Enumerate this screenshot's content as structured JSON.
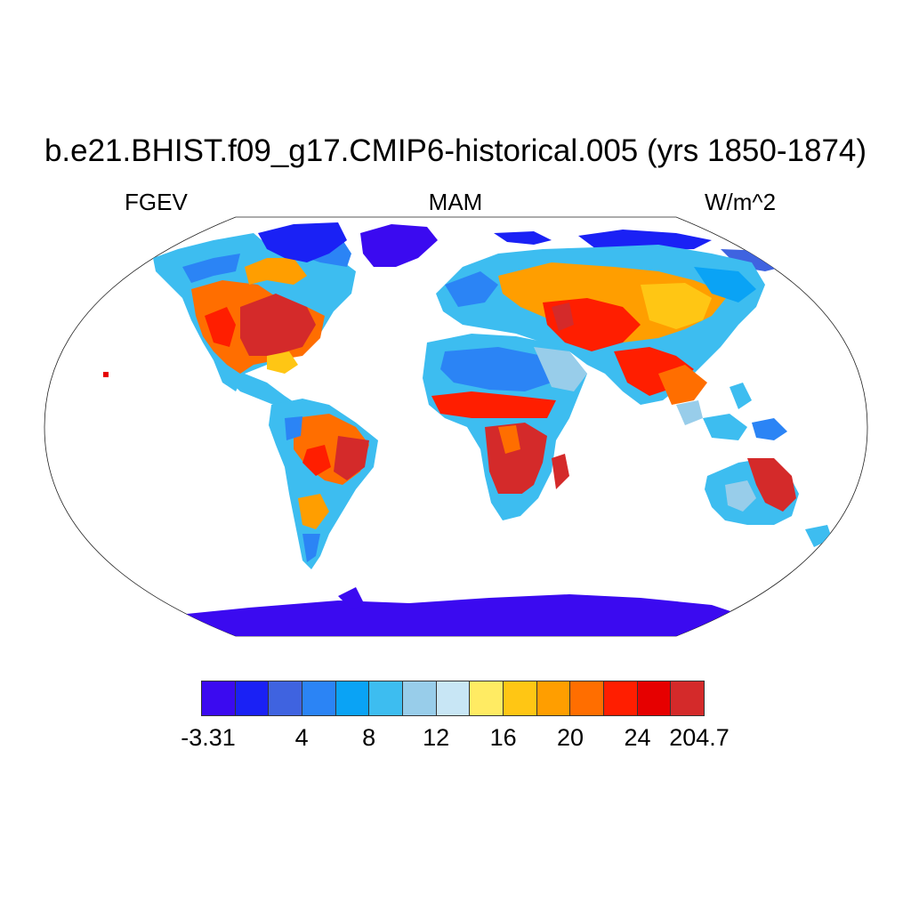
{
  "title": "b.e21.BHIST.f09_g17.CMIP6-historical.005 (yrs 1850-1874)",
  "subtitle_left": "FGEV",
  "subtitle_center": "MAM",
  "subtitle_right": "W/m^2",
  "map": {
    "projection": "Robinson",
    "description_fields": {
      "variable": "FGEV",
      "season": "MAM",
      "units": "W/m^2"
    }
  },
  "colorbar": {
    "colors": [
      "#3b0af0",
      "#1a21f5",
      "#3f63e0",
      "#2b84f5",
      "#0aa3f5",
      "#3dbdf0",
      "#98cdea",
      "#c8e6f5",
      "#ffeb63",
      "#ffc614",
      "#ff9e00",
      "#ff6e00",
      "#ff1e00",
      "#e60000",
      "#d42a2a"
    ],
    "labels": [
      {
        "text": "-3.31",
        "index": 0
      },
      {
        "text": "4",
        "index": 3
      },
      {
        "text": "8",
        "index": 5
      },
      {
        "text": "12",
        "index": 7
      },
      {
        "text": "16",
        "index": 9
      },
      {
        "text": "20",
        "index": 11
      },
      {
        "text": "24",
        "index": 13
      },
      {
        "text": "204.7",
        "index": 15
      }
    ]
  },
  "palette": {
    "deep_blue": "#3b0af0",
    "blue": "#2b84f5",
    "light_blue": "#3dbdf0",
    "pale_blue": "#98cdea",
    "yellow": "#ffeb63",
    "orange": "#ff9e00",
    "red": "#ff1e00",
    "dark_red": "#d42a2a"
  }
}
